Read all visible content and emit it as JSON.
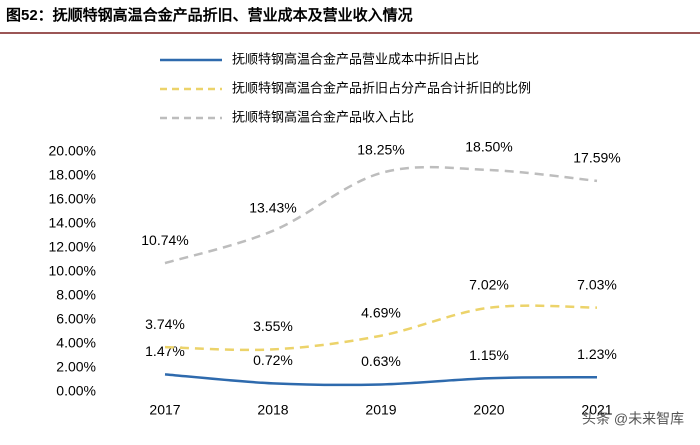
{
  "chart_data": {
    "type": "line",
    "title": "图52：抚顺特钢高温合金产品折旧、营业成本及营业收入情况",
    "categories": [
      "2017",
      "2018",
      "2019",
      "2020",
      "2021"
    ],
    "series": [
      {
        "name": "抚顺特钢高温合金产品营业成本中折旧占比",
        "color": "#2e6aad",
        "line_style": "solid",
        "values": [
          1.47,
          0.72,
          0.63,
          1.15,
          1.23
        ],
        "value_labels": [
          "1.47%",
          "0.72%",
          "0.63%",
          "1.15%",
          "1.23%"
        ]
      },
      {
        "name": "抚顺特钢高温合金产品折旧占分产品合计折旧的比例",
        "color": "#ecd36a",
        "line_style": "dashed",
        "values": [
          3.74,
          3.55,
          4.69,
          7.02,
          7.03
        ],
        "value_labels": [
          "3.74%",
          "3.55%",
          "4.69%",
          "7.02%",
          "7.03%"
        ]
      },
      {
        "name": "抚顺特钢高温合金产品收入占比",
        "color": "#bdbdbd",
        "line_style": "dashed",
        "values": [
          10.74,
          13.43,
          18.25,
          18.5,
          17.59
        ],
        "value_labels": [
          "10.74%",
          "13.43%",
          "18.25%",
          "18.50%",
          "17.59%"
        ]
      }
    ],
    "ylim": [
      0,
      20
    ],
    "yticks": [
      {
        "value": 0,
        "label": "0.00%"
      },
      {
        "value": 2,
        "label": "2.00%"
      },
      {
        "value": 4,
        "label": "4.00%"
      },
      {
        "value": 6,
        "label": "6.00%"
      },
      {
        "value": 8,
        "label": "8.00%"
      },
      {
        "value": 10,
        "label": "10.00%"
      },
      {
        "value": 12,
        "label": "12.00%"
      },
      {
        "value": 14,
        "label": "14.00%"
      },
      {
        "value": 16,
        "label": "16.00%"
      },
      {
        "value": 18,
        "label": "18.00%"
      },
      {
        "value": 20,
        "label": "20.00%"
      }
    ],
    "grid": false,
    "smooth": true,
    "watermark": "头条 @未来智库"
  }
}
